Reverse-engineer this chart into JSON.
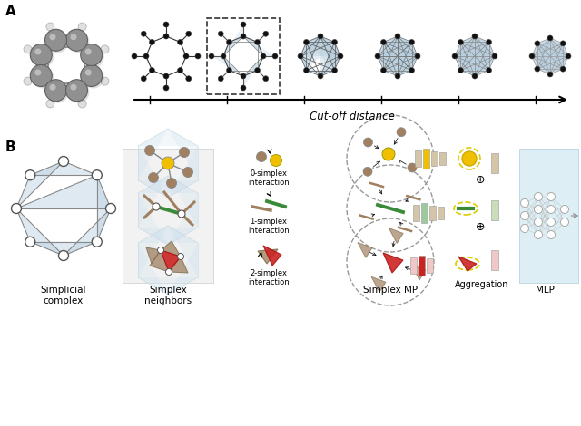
{
  "bg_color": "#ffffff",
  "light_blue": "#b8d0e0",
  "light_blue2": "#cce0ee",
  "tan_color": "#a08060",
  "yellow_color": "#f0c000",
  "green_color": "#3a8a3a",
  "red_color": "#cc2222",
  "mlp_bg": "#ddeef5",
  "panel_bg": "#f0f0f0",
  "cutoff_label": "Cut-off distance",
  "agg_label": "Aggregation",
  "labels": [
    [
      "Simplicial",
      "complex"
    ],
    [
      "Simplex",
      "neighbors"
    ],
    [
      "Simplex MP"
    ],
    [
      "MLP"
    ]
  ],
  "sx_labels": [
    "0-simplex\ninteraction",
    "1-simplex\ninteraction",
    "2-simplex\ninteraction"
  ]
}
